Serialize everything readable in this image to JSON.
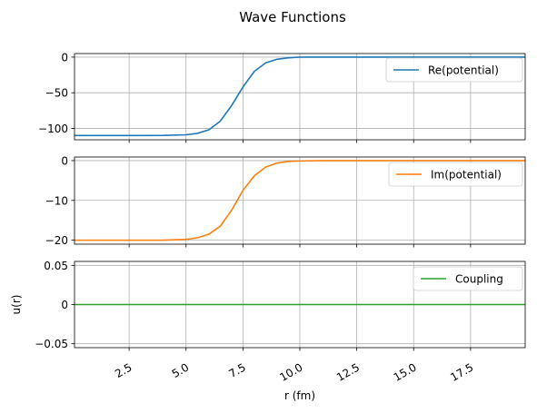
{
  "figure": {
    "title": "Wave Functions"
  },
  "chart_data": [
    {
      "type": "line",
      "xlim": [
        0.1,
        19.9
      ],
      "ylim": [
        -116,
        5
      ],
      "yticks": [
        0,
        -50,
        -100
      ],
      "grid": true,
      "legend_loc": "upper-right",
      "series": [
        {
          "name": "Re(potential)",
          "color": "#1f77b4",
          "x": [
            0.1,
            1.0,
            2.0,
            3.0,
            4.0,
            5.0,
            5.5,
            6.0,
            6.5,
            7.0,
            7.5,
            8.0,
            8.5,
            9.0,
            9.5,
            10.0,
            11.0,
            12.0,
            14.0,
            17.0,
            19.9
          ],
          "y": [
            -110,
            -110,
            -110,
            -110,
            -109.9,
            -109,
            -107,
            -102,
            -90,
            -68,
            -42,
            -20,
            -8,
            -3,
            -1,
            0,
            0,
            0,
            0,
            0,
            0
          ]
        }
      ]
    },
    {
      "type": "line",
      "xlim": [
        0.1,
        19.9
      ],
      "ylim": [
        -21,
        0.9
      ],
      "yticks": [
        0,
        -10,
        -20
      ],
      "grid": true,
      "legend_loc": "upper-right",
      "series": [
        {
          "name": "Im(potential)",
          "color": "#ff7f0e",
          "x": [
            0.1,
            1.0,
            2.0,
            3.0,
            4.0,
            5.0,
            5.5,
            6.0,
            6.5,
            7.0,
            7.5,
            8.0,
            8.5,
            9.0,
            9.5,
            10.0,
            11.0,
            12.0,
            14.0,
            17.0,
            19.9
          ],
          "y": [
            -20,
            -20,
            -20,
            -20,
            -19.98,
            -19.8,
            -19.4,
            -18.5,
            -16.5,
            -12.5,
            -7.5,
            -3.8,
            -1.6,
            -0.6,
            -0.2,
            -0.1,
            0,
            0,
            0,
            0,
            0
          ]
        }
      ]
    },
    {
      "type": "line",
      "xlim": [
        0.1,
        19.9
      ],
      "ylim": [
        -0.055,
        0.055
      ],
      "yticks": [
        0.05,
        0.0,
        -0.05
      ],
      "ylabel": "u(r)",
      "xlabel": "r (fm)",
      "xticks": [
        2.5,
        5.0,
        7.5,
        10.0,
        12.5,
        15.0,
        17.5
      ],
      "grid": true,
      "legend_loc": "upper-right",
      "series": [
        {
          "name": "Coupling",
          "color": "#2ca02c",
          "x": [
            0.1,
            19.9
          ],
          "y": [
            0,
            0
          ]
        }
      ]
    }
  ]
}
